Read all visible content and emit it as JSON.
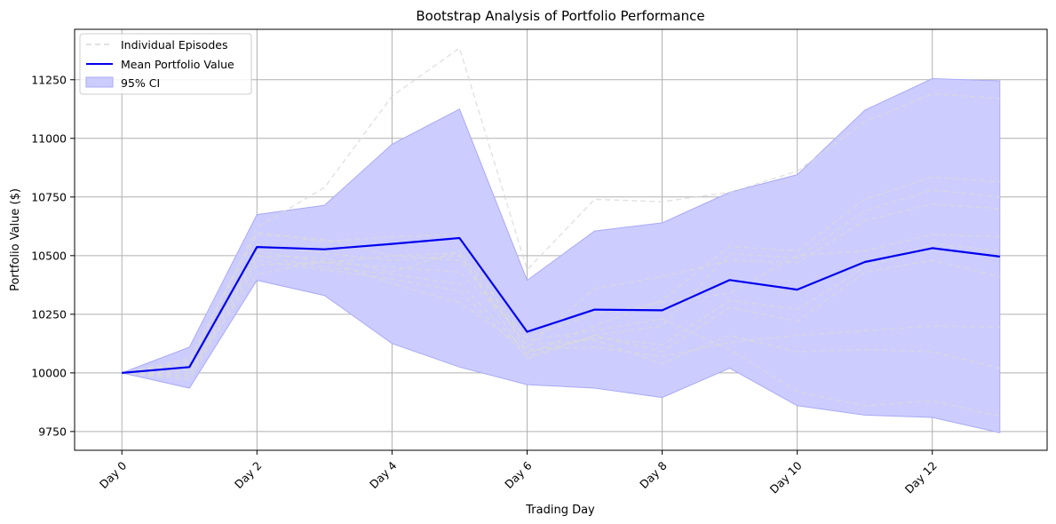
{
  "chart_data": {
    "type": "line",
    "title": "Bootstrap Analysis of Portfolio Performance",
    "xlabel": "Trading Day",
    "ylabel": "Portfolio Value ($)",
    "x": [
      0,
      1,
      2,
      3,
      4,
      5,
      6,
      7,
      8,
      9,
      10,
      11,
      12,
      13
    ],
    "xlim": [
      -0.7,
      13.7
    ],
    "ylim": [
      9670,
      11465
    ],
    "x_ticks": [
      {
        "value": 0,
        "label": "Day 0"
      },
      {
        "value": 2,
        "label": "Day 2"
      },
      {
        "value": 4,
        "label": "Day 4"
      },
      {
        "value": 6,
        "label": "Day 6"
      },
      {
        "value": 8,
        "label": "Day 8"
      },
      {
        "value": 10,
        "label": "Day 10"
      },
      {
        "value": 12,
        "label": "Day 12"
      }
    ],
    "y_ticks": [
      {
        "value": 9750,
        "label": "9750"
      },
      {
        "value": 10000,
        "label": "10000"
      },
      {
        "value": 10250,
        "label": "10250"
      },
      {
        "value": 10500,
        "label": "10500"
      },
      {
        "value": 10750,
        "label": "10750"
      },
      {
        "value": 11000,
        "label": "11000"
      },
      {
        "value": 11250,
        "label": "11250"
      }
    ],
    "grid": true,
    "legend_position": "top-left",
    "legend": [
      {
        "key": "episodes",
        "label": "Individual Episodes"
      },
      {
        "key": "mean",
        "label": "Mean Portfolio Value"
      },
      {
        "key": "ci",
        "label": "95% CI"
      }
    ],
    "colors": {
      "mean": "#0000ee",
      "ci_fill": "#ccccff",
      "ci_edge": "#aaaaf5",
      "episode": "#d9d9d9",
      "grid": "#b0b0b0"
    },
    "mean": [
      10000,
      10025,
      10537,
      10527,
      10550,
      10575,
      10175,
      10270,
      10267,
      10396,
      10355,
      10473,
      10532,
      10496
    ],
    "ci_upper": [
      10000,
      10110,
      10675,
      10715,
      10975,
      11125,
      10395,
      10605,
      10640,
      10770,
      10845,
      11120,
      11255,
      11245
    ],
    "ci_lower": [
      10000,
      9935,
      10395,
      10330,
      10125,
      10025,
      9950,
      9935,
      9895,
      10020,
      9860,
      9820,
      9810,
      9745
    ],
    "episodes": [
      [
        10000,
        10040,
        10620,
        10790,
        11180,
        11385,
        10440,
        10740,
        10730,
        10770,
        10860,
        11070,
        11190,
        11170
      ],
      [
        10000,
        10060,
        10600,
        10560,
        10580,
        10590,
        10080,
        10200,
        10310,
        10540,
        10520,
        10740,
        10835,
        10815
      ],
      [
        10000,
        10050,
        10590,
        10570,
        10500,
        10510,
        10060,
        10160,
        10200,
        10510,
        10490,
        10690,
        10780,
        10750
      ],
      [
        10000,
        10030,
        10550,
        10510,
        10480,
        10500,
        10110,
        10360,
        10410,
        10480,
        10470,
        10650,
        10720,
        10700
      ],
      [
        10000,
        10020,
        10520,
        10470,
        10450,
        10430,
        10150,
        10250,
        10300,
        10340,
        10500,
        10520,
        10590,
        10580
      ],
      [
        10000,
        9990,
        10500,
        10450,
        10420,
        10380,
        10090,
        10150,
        10120,
        10310,
        10270,
        10450,
        10550,
        10520
      ],
      [
        10000,
        9980,
        10480,
        10440,
        10400,
        10350,
        10070,
        10160,
        10090,
        10280,
        10220,
        10430,
        10480,
        10410
      ],
      [
        10000,
        9970,
        10460,
        10470,
        10500,
        10480,
        10120,
        10140,
        10040,
        10160,
        10090,
        10100,
        10090,
        10020
      ],
      [
        10000,
        10010,
        10420,
        10480,
        10380,
        10300,
        10100,
        10110,
        10070,
        10130,
        10160,
        10180,
        10200,
        10195
      ],
      [
        10000,
        10000,
        10500,
        10490,
        10430,
        10520,
        10140,
        10180,
        10230,
        10100,
        9920,
        9860,
        9880,
        9815
      ]
    ]
  }
}
